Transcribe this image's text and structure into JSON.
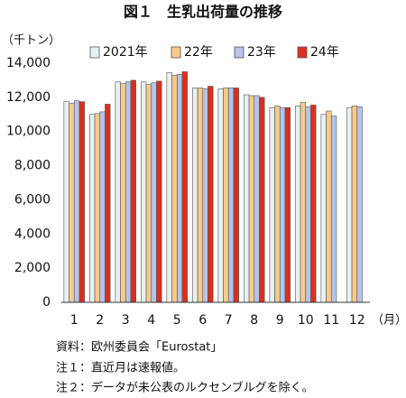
{
  "chart_data": {
    "type": "bar",
    "title": "図１　生乳出荷量の推移",
    "y_unit": "（千トン）",
    "x_unit": "（月）",
    "categories": [
      "1",
      "2",
      "3",
      "4",
      "5",
      "6",
      "7",
      "8",
      "9",
      "10",
      "11",
      "12"
    ],
    "series": [
      {
        "name": "2021年",
        "color": "#e6f2f2",
        "values": [
          11750,
          11000,
          12900,
          12900,
          13450,
          12550,
          12500,
          12150,
          11400,
          11500,
          11000,
          11400
        ]
      },
      {
        "name": "22年",
        "color": "#f9c98a",
        "values": [
          11650,
          11050,
          12800,
          12750,
          13300,
          12550,
          12550,
          12100,
          11500,
          11700,
          11200,
          11500
        ]
      },
      {
        "name": "23年",
        "color": "#b4c4ea",
        "values": [
          11800,
          11150,
          12900,
          12850,
          13350,
          12500,
          12550,
          12100,
          11400,
          11450,
          10900,
          11450
        ]
      },
      {
        "name": "24年",
        "color": "#d9301e",
        "values": [
          11750,
          11600,
          13000,
          12950,
          13500,
          12650,
          12550,
          12000,
          11400,
          11550,
          null,
          null
        ]
      }
    ],
    "ylim": [
      0,
      14000
    ],
    "yticks": [
      0,
      {
        "value": 2000,
        "label": "2,000"
      },
      {
        "value": 4000,
        "label": "4,000"
      },
      {
        "value": 6000,
        "label": "6,000"
      },
      {
        "value": 8000,
        "label": "8,000"
      },
      {
        "value": 10000,
        "label": "10,000"
      },
      {
        "value": 12000,
        "label": "12,000"
      },
      {
        "value": 14000,
        "label": "14,000"
      }
    ],
    "notes": [
      "資料：欧州委員会「Eurostat」",
      "注１：直近月は速報値。",
      "注２：データが未公表のルクセンブルグを除く。"
    ]
  }
}
